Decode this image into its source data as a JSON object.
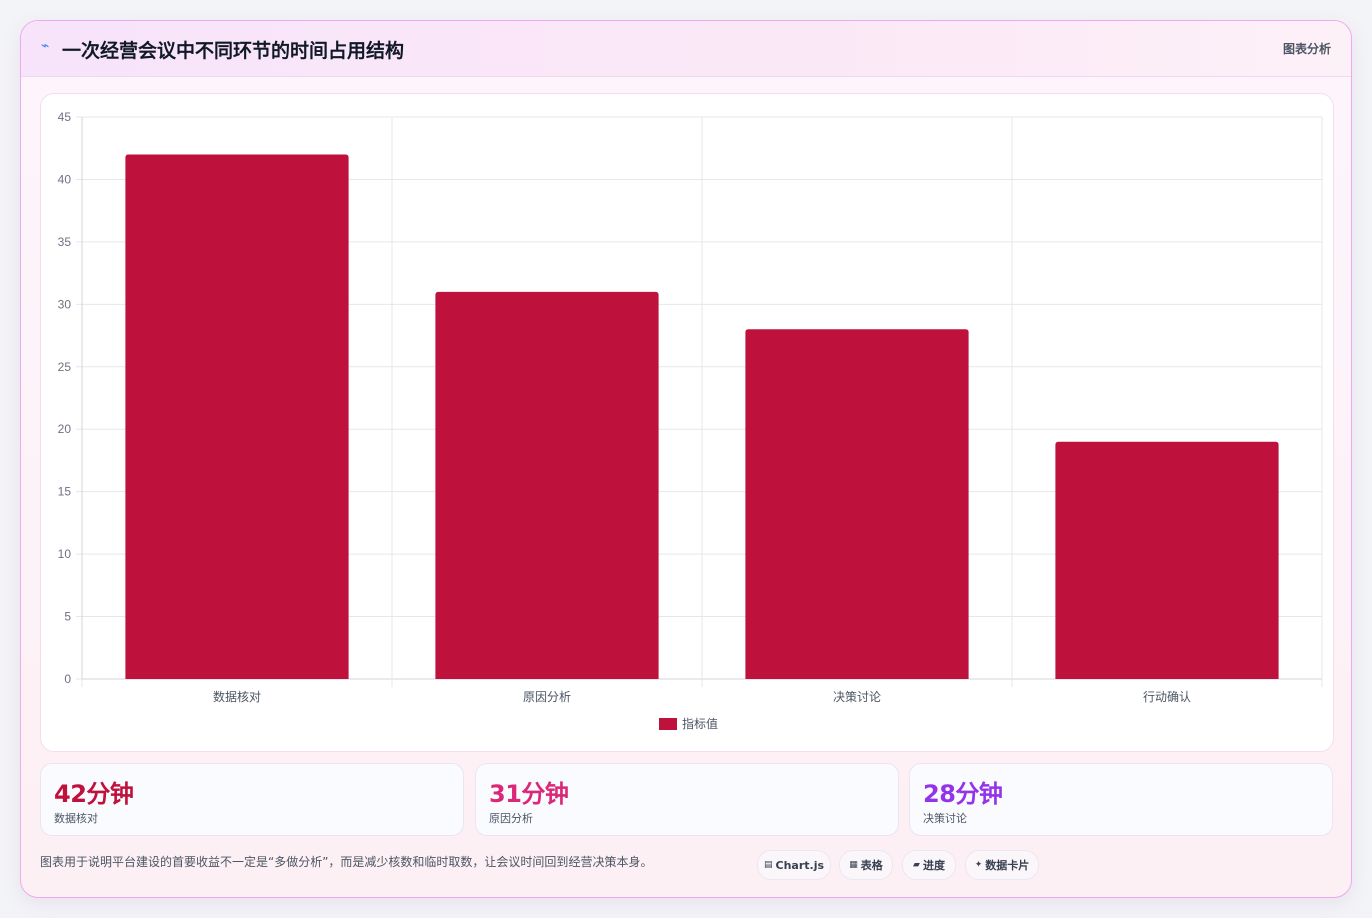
{
  "header": {
    "icon": "lightning-icon",
    "title": "一次经营会议中不同环节的时间占用结构",
    "tag": "图表分析"
  },
  "chart_data": {
    "type": "bar",
    "title": "",
    "xlabel": "",
    "ylabel": "",
    "categories": [
      "数据核对",
      "原因分析",
      "决策讨论",
      "行动确认"
    ],
    "series": [
      {
        "name": "指标值",
        "values": [
          42,
          31,
          28,
          19
        ],
        "color": "#be123c"
      }
    ],
    "ylim": [
      0,
      45
    ],
    "yticks": [
      0,
      5,
      10,
      15,
      20,
      25,
      30,
      35,
      40,
      45
    ],
    "grid": true,
    "legend": "bottom-center"
  },
  "stats": [
    {
      "value": "42分钟",
      "label": "数据核对",
      "color": "#be123c"
    },
    {
      "value": "31分钟",
      "label": "原因分析",
      "color": "#db2777"
    },
    {
      "value": "28分钟",
      "label": "决策讨论",
      "color": "#9333ea"
    }
  ],
  "footnote": "图表用于说明平台建设的首要收益不一定是“多做分析”，而是减少核数和临时取数，让会议时间回到经营决策本身。",
  "pills": [
    {
      "icon": "chart-icon",
      "glyph": "▤",
      "label": "Chart.js"
    },
    {
      "icon": "table-icon",
      "glyph": "▦",
      "label": "表格"
    },
    {
      "icon": "progress-icon",
      "glyph": "▰",
      "label": "进度"
    },
    {
      "icon": "sparkle-icon",
      "glyph": "✦",
      "label": "数据卡片"
    }
  ]
}
